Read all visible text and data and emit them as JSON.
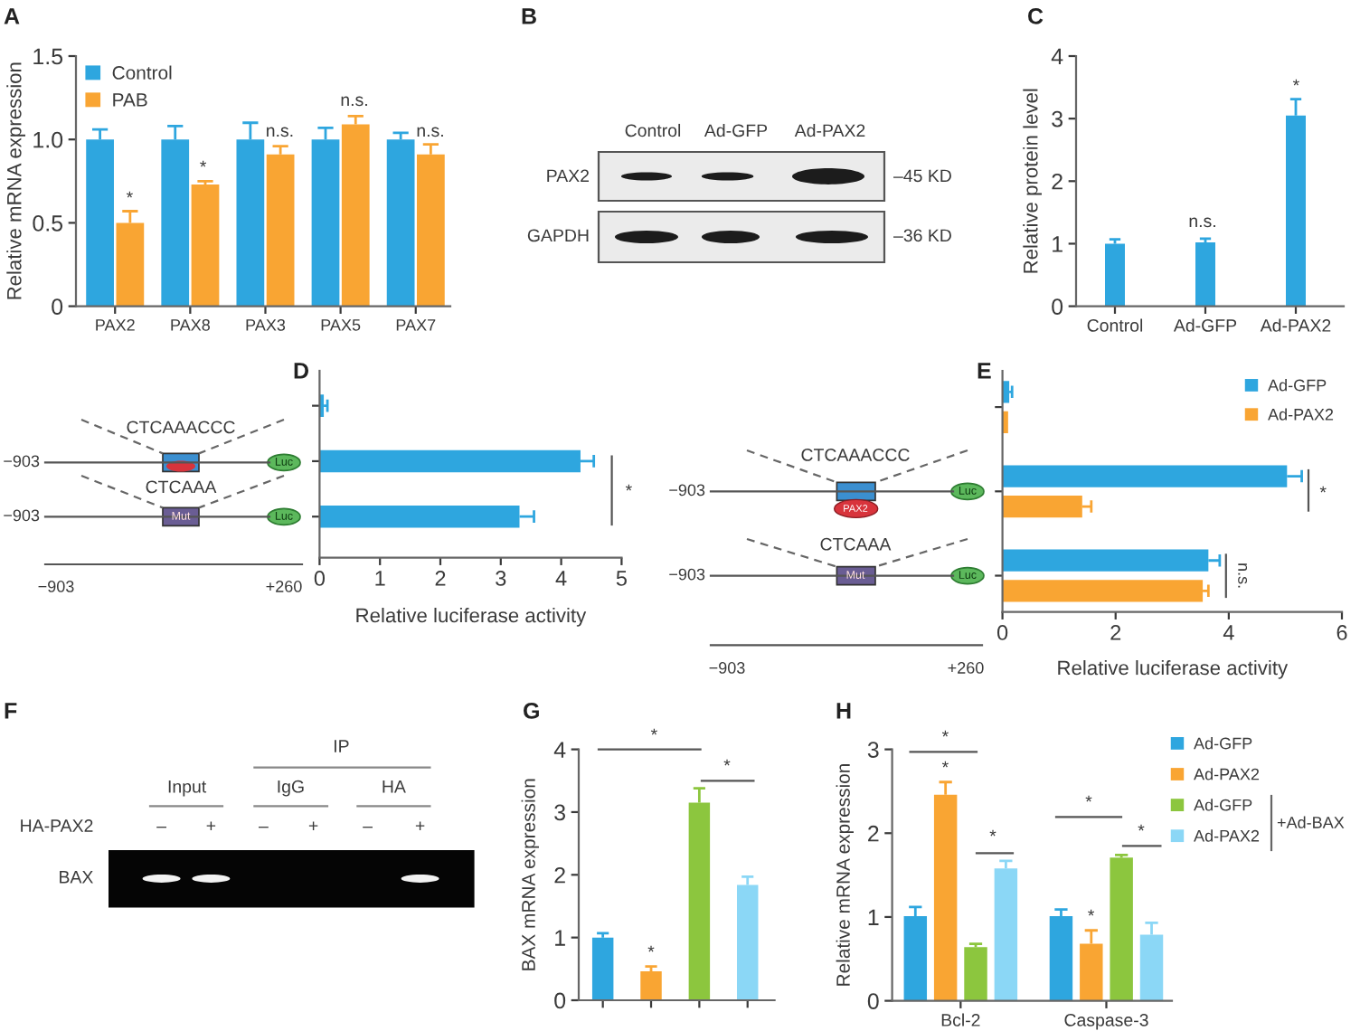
{
  "chart_data": [
    {
      "type": "bar",
      "title": "A",
      "ylabel": "Relative mRNA expression",
      "categories": [
        "PAX2",
        "PAX8",
        "PAX3",
        "PAX5",
        "PAX7"
      ],
      "series": [
        {
          "name": "Control",
          "color": "#2ea6df",
          "values": [
            1.0,
            1.0,
            1.0,
            1.0,
            1.0
          ],
          "errors": [
            [
              1.0,
              1.06
            ],
            [
              1.0,
              1.08
            ],
            [
              1.0,
              1.1
            ],
            [
              1.0,
              1.07
            ],
            [
              1.0,
              1.04
            ]
          ]
        },
        {
          "name": "PAB",
          "color": "#f9a533",
          "values": [
            0.5,
            0.73,
            0.91,
            1.09,
            0.91
          ],
          "errors": [
            [
              0.5,
              0.57
            ],
            [
              0.73,
              0.75
            ],
            [
              0.91,
              0.96
            ],
            [
              1.09,
              1.14
            ],
            [
              0.91,
              0.97
            ]
          ]
        }
      ],
      "ylim": [
        0,
        1.5
      ],
      "yticks": [
        0,
        0.5,
        {
          "value": 1,
          "label": "1.0"
        },
        1.5
      ],
      "legend": "top left",
      "annotations": [
        "*",
        "*",
        "n.s.",
        "n.s.",
        "n.s."
      ]
    },
    {
      "type": "other",
      "title": "B",
      "annotations": [
        "Control",
        "Ad-GFP",
        "Ad-PAX2",
        "PAX2",
        "GAPDH",
        "–45 KD",
        "–36 KD"
      ]
    },
    {
      "type": "bar",
      "title": "C",
      "ylabel": "Relative protein level",
      "categories": [
        "Control",
        "Ad-GFP",
        "Ad-PAX2"
      ],
      "values": [
        1.0,
        1.02,
        3.05
      ],
      "color": "#2ea6df",
      "errors": [
        [
          1.0,
          1.07
        ],
        [
          1.02,
          1.08
        ],
        [
          3.05,
          3.31
        ]
      ],
      "ylim": [
        0,
        4
      ],
      "yticks": [
        0,
        1,
        2,
        3,
        4
      ],
      "annotations": [
        "n.s.",
        "*"
      ]
    },
    {
      "type": "bar",
      "orientation": "horizontal",
      "title": "D",
      "xlabel": "Relative luciferase activity",
      "categories": [
        null,
        null,
        null
      ],
      "values": [
        0.07,
        4.32,
        3.31
      ],
      "color": "#2ea6df",
      "errors": [
        [
          0.07,
          0.13
        ],
        [
          4.32,
          4.54
        ],
        [
          3.31,
          3.55
        ]
      ],
      "xlim": [
        0,
        5
      ],
      "xticks": [
        0,
        1,
        2,
        3,
        4,
        5
      ],
      "annotations": [
        "CTCAAACCC",
        "CTCAAA",
        "−903",
        "−903",
        "Luc",
        "Luc",
        "Mut",
        "−903",
        "+260",
        "*"
      ]
    },
    {
      "type": "bar",
      "orientation": "horizontal",
      "title": "E",
      "xlabel": "Relative luciferase activity",
      "categories": [
        null,
        null,
        null
      ],
      "series": [
        {
          "name": "Ad-GFP",
          "color": "#2ea6df",
          "values": [
            0.12,
            5.03,
            3.64
          ],
          "errors": [
            [
              0.12,
              0.17
            ],
            [
              5.03,
              5.29
            ],
            [
              3.64,
              3.84
            ]
          ]
        },
        {
          "name": "Ad-PAX2",
          "color": "#f9a533",
          "values": [
            0.1,
            1.41,
            3.54
          ],
          "errors": [
            null,
            [
              1.41,
              1.57
            ],
            [
              3.54,
              3.64
            ]
          ]
        }
      ],
      "xlim": [
        0,
        6
      ],
      "xticks": [
        0,
        2,
        4,
        6
      ],
      "legend": "top right",
      "annotations": [
        "CTCAAACCC",
        "CTCAAA",
        "−903",
        "−903",
        "Luc",
        "Luc",
        "PAX2",
        "Mut",
        "−903",
        "+260",
        "*",
        "n.s."
      ]
    },
    {
      "type": "other",
      "title": "F",
      "annotations": [
        "IP",
        "Input",
        "IgG",
        "HA",
        "HA-PAX2",
        "–",
        "+",
        "–",
        "+",
        "–",
        "+",
        "BAX"
      ]
    },
    {
      "type": "bar",
      "title": "G",
      "ylabel": "BAX mRNA expression",
      "categories": [
        null,
        null,
        null,
        null
      ],
      "values": [
        1.0,
        0.46,
        3.15,
        1.84
      ],
      "colors": [
        "#2ea6df",
        "#f9a533",
        "#8cc63e",
        "#8bd7f6"
      ],
      "errors": [
        [
          1.0,
          1.07
        ],
        [
          0.46,
          0.54
        ],
        [
          3.15,
          3.38
        ],
        [
          1.84,
          1.97
        ]
      ],
      "ylim": [
        0,
        4
      ],
      "yticks": [
        0,
        1,
        2,
        3,
        4
      ],
      "annotations": [
        "*",
        "*",
        "*"
      ]
    },
    {
      "type": "bar",
      "title": "H",
      "ylabel": "Relative mRNA expression",
      "categories": [
        "Bcl-2",
        "Caspase-3"
      ],
      "series": [
        {
          "name": "Ad-GFP",
          "color": "#2ea6df",
          "values": [
            1.01,
            1.01
          ],
          "errors": [
            [
              1.01,
              1.12
            ],
            [
              1.01,
              1.09
            ]
          ]
        },
        {
          "name": "Ad-PAX2",
          "color": "#f9a533",
          "values": [
            2.46,
            0.68
          ],
          "errors": [
            [
              2.46,
              2.61
            ],
            [
              0.68,
              0.84
            ]
          ]
        },
        {
          "name": "Ad-GFP",
          "color": "#8cc63e",
          "values": [
            0.64,
            1.71
          ],
          "errors": [
            [
              0.64,
              0.68
            ],
            [
              1.71,
              1.74
            ]
          ]
        },
        {
          "name": "Ad-PAX2",
          "color": "#8bd7f6",
          "values": [
            1.58,
            0.79
          ],
          "errors": [
            [
              1.58,
              1.67
            ],
            [
              0.79,
              0.93
            ]
          ]
        }
      ],
      "ylim": [
        0,
        3
      ],
      "yticks": [
        0,
        1,
        2,
        3
      ],
      "legend": "top right",
      "annotations": [
        "*",
        "*",
        "*",
        "*",
        "*",
        "*",
        "+Ad-BAX"
      ]
    }
  ]
}
